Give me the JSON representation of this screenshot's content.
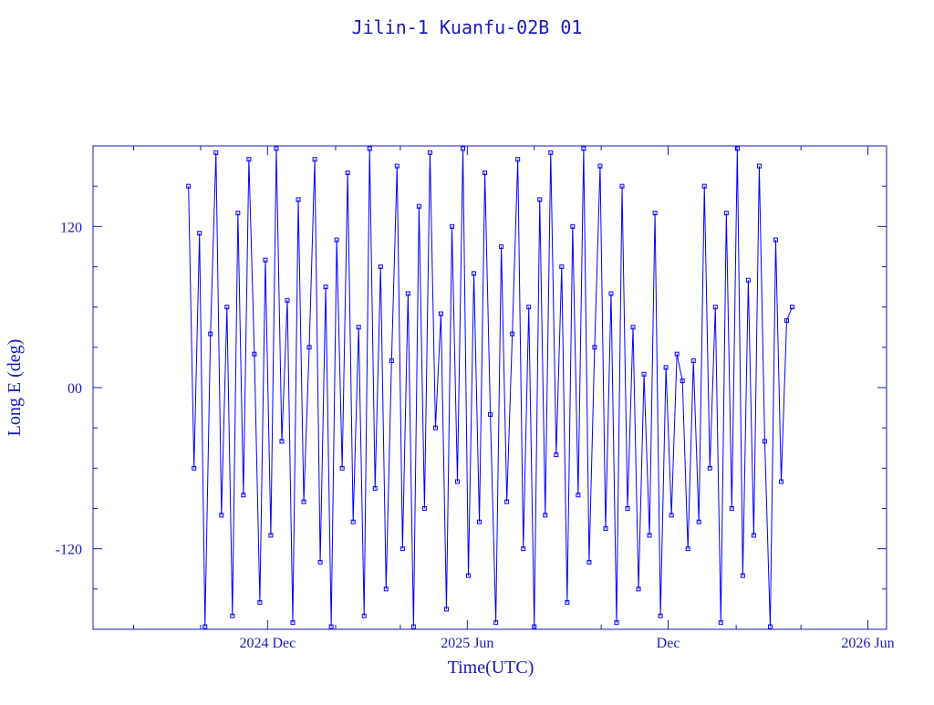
{
  "chart_data": {
    "type": "line",
    "title": "Jilin-1 Kuanfu-02B 01",
    "x_label": "Time(UTC)",
    "y_label": "Long E (deg)",
    "xlim": [
      "2024-06-25",
      "2026-06-18"
    ],
    "xticks": [
      {
        "value": "2024-12-01",
        "label": "2024 Dec"
      },
      {
        "value": "2025-06-01",
        "label": "2025 Jun"
      },
      {
        "value": "2025-12-01",
        "label": "Dec"
      },
      {
        "value": "2026-06-01",
        "label": "2026 Jun"
      }
    ],
    "xminorticks": [
      "2024-08-01",
      "2024-10-01",
      "2025-02-01",
      "2025-04-01",
      "2025-08-01",
      "2025-10-01",
      "2026-02-01",
      "2026-04-01"
    ],
    "ylim": [
      -180,
      180
    ],
    "yticks": [
      -120,
      {
        "value": 0,
        "label": "00"
      },
      120
    ],
    "yminorticks": [
      -150,
      -90,
      -60,
      -30,
      30,
      60,
      90,
      150
    ],
    "x": [
      "2024-09-20",
      "2024-09-25",
      "2024-09-30",
      "2024-10-05",
      "2024-10-10",
      "2024-10-15",
      "2024-10-20",
      "2024-10-25",
      "2024-10-30",
      "2024-11-04",
      "2024-11-09",
      "2024-11-14",
      "2024-11-19",
      "2024-11-24",
      "2024-11-29",
      "2024-12-04",
      "2024-12-09",
      "2024-12-14",
      "2024-12-19",
      "2024-12-24",
      "2024-12-29",
      "2025-01-03",
      "2025-01-08",
      "2025-01-13",
      "2025-01-18",
      "2025-01-23",
      "2025-01-28",
      "2025-02-02",
      "2025-02-07",
      "2025-02-12",
      "2025-02-17",
      "2025-02-22",
      "2025-02-27",
      "2025-03-04",
      "2025-03-09",
      "2025-03-14",
      "2025-03-19",
      "2025-03-24",
      "2025-03-29",
      "2025-04-03",
      "2025-04-08",
      "2025-04-13",
      "2025-04-18",
      "2025-04-23",
      "2025-04-28",
      "2025-05-03",
      "2025-05-08",
      "2025-05-13",
      "2025-05-18",
      "2025-05-23",
      "2025-05-28",
      "2025-06-02",
      "2025-06-07",
      "2025-06-12",
      "2025-06-17",
      "2025-06-22",
      "2025-06-27",
      "2025-07-02",
      "2025-07-07",
      "2025-07-12",
      "2025-07-17",
      "2025-07-22",
      "2025-07-27",
      "2025-08-01",
      "2025-08-06",
      "2025-08-11",
      "2025-08-16",
      "2025-08-21",
      "2025-08-26",
      "2025-08-31",
      "2025-09-05",
      "2025-09-10",
      "2025-09-15",
      "2025-09-20",
      "2025-09-25",
      "2025-09-30",
      "2025-10-05",
      "2025-10-10",
      "2025-10-15",
      "2025-10-20",
      "2025-10-25",
      "2025-10-30",
      "2025-11-04",
      "2025-11-09",
      "2025-11-14",
      "2025-11-19",
      "2025-11-24",
      "2025-11-29",
      "2025-12-04",
      "2025-12-09",
      "2025-12-14",
      "2025-12-19",
      "2025-12-24",
      "2025-12-29",
      "2026-01-03",
      "2026-01-08",
      "2026-01-13",
      "2026-01-18",
      "2026-01-23",
      "2026-01-28",
      "2026-02-02",
      "2026-02-07",
      "2026-02-12",
      "2026-02-17",
      "2026-02-22",
      "2026-02-27",
      "2026-03-04",
      "2026-03-09",
      "2026-03-14",
      "2026-03-19",
      "2026-03-24"
    ],
    "series": [
      {
        "name": "Long E",
        "color": "#0000ff",
        "values": [
          150,
          -60,
          115,
          -178,
          40,
          175,
          -95,
          60,
          -170,
          130,
          -80,
          170,
          25,
          -160,
          95,
          -110,
          178,
          -40,
          65,
          -175,
          140,
          -85,
          30,
          170,
          -130,
          75,
          -178,
          110,
          -60,
          160,
          -100,
          45,
          -170,
          178,
          -75,
          90,
          -150,
          20,
          165,
          -120,
          70,
          -178,
          135,
          -90,
          175,
          -30,
          55,
          -165,
          120,
          -70,
          178,
          -140,
          85,
          -100,
          160,
          -20,
          -175,
          105,
          -85,
          40,
          170,
          -120,
          60,
          -178,
          140,
          -95,
          175,
          -50,
          90,
          -160,
          120,
          -80,
          178,
          -130,
          30,
          165,
          -105,
          70,
          -175,
          150,
          -90,
          45,
          -150,
          10,
          -110,
          130,
          -170,
          15,
          -95,
          25,
          5,
          -120,
          20,
          -100,
          150,
          -60,
          60,
          -175,
          130,
          -90,
          178,
          -140,
          80,
          -110,
          165,
          -40,
          -178,
          110,
          -70,
          50,
          60
        ]
      }
    ]
  }
}
